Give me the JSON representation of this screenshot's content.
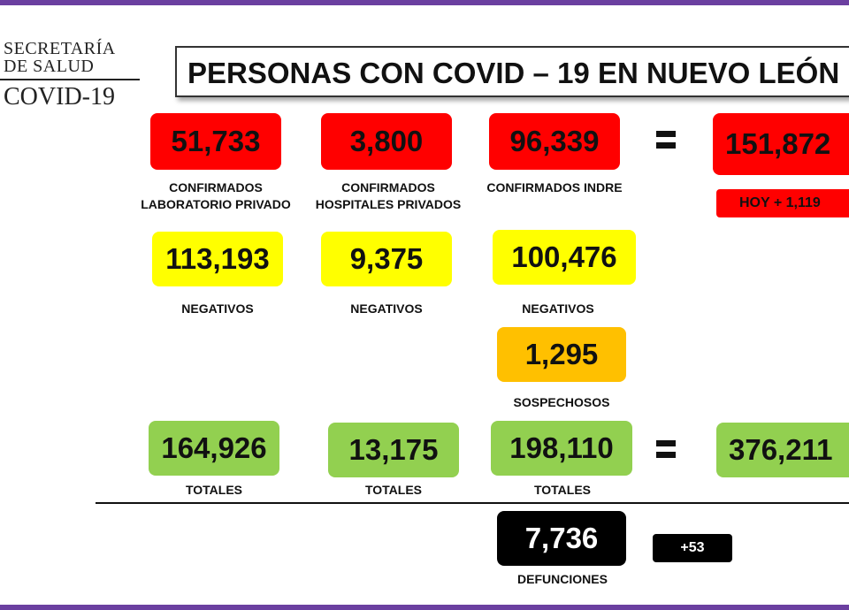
{
  "logo": {
    "line1": "SECRETARÍA",
    "line2": "DE SALUD",
    "line3": "COVID-19"
  },
  "title": "PERSONAS CON COVID – 19 EN NUEVO LEÓN",
  "confirmados": {
    "privado": {
      "value": "51,733",
      "label_1": "CONFIRMADOS",
      "label_2": "LABORATORIO PRIVADO"
    },
    "hospitales": {
      "value": "3,800",
      "label_1": "CONFIRMADOS",
      "label_2": "HOSPITALES PRIVADOS"
    },
    "indre": {
      "value": "96,339",
      "label": "CONFIRMADOS INDRE"
    },
    "total": {
      "value": "151,872",
      "today": "HOY + 1,119"
    }
  },
  "negativos": {
    "privado": {
      "value": "113,193",
      "label": "NEGATIVOS"
    },
    "hospitales": {
      "value": "9,375",
      "label": "NEGATIVOS"
    },
    "indre": {
      "value": "100,476",
      "label": "NEGATIVOS"
    }
  },
  "sospechosos": {
    "value": "1,295",
    "label": "SOSPECHOSOS"
  },
  "totales": {
    "privado": {
      "value": "164,926",
      "label": "TOTALES"
    },
    "hospitales": {
      "value": "13,175",
      "label": "TOTALES"
    },
    "indre": {
      "value": "198,110",
      "label": "TOTALES"
    },
    "grand_total": {
      "value": "376,211"
    }
  },
  "defunciones": {
    "value": "7,736",
    "label": "DEFUNCIONES",
    "today": "+53"
  },
  "colors": {
    "red": "#ff0000",
    "yellow": "#ffff00",
    "orange": "#ffc000",
    "green": "#92d050",
    "frame": "#6b3fa0"
  }
}
